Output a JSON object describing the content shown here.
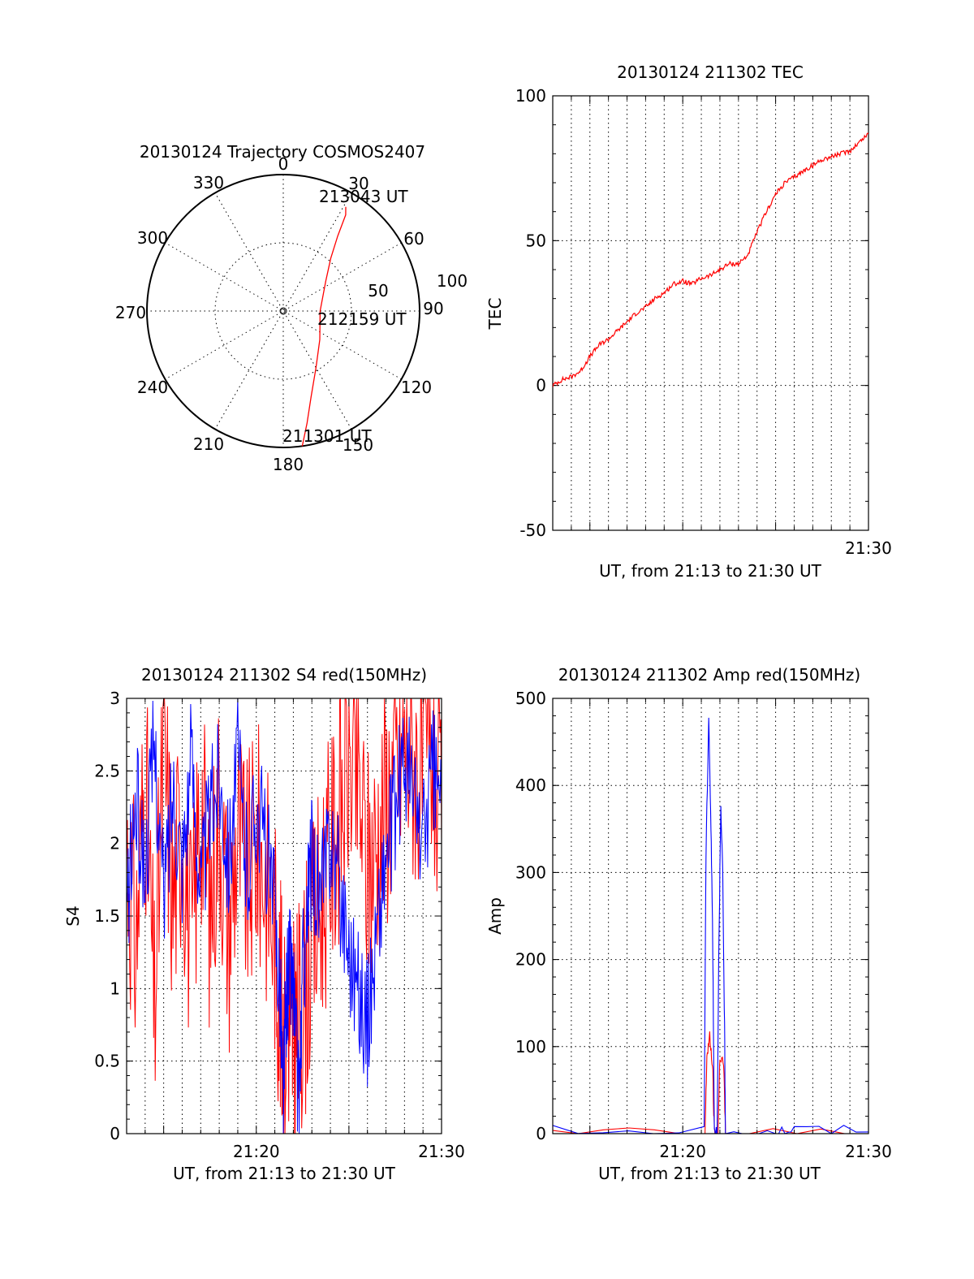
{
  "chart_data": [
    {
      "id": "trajectory",
      "type": "polar",
      "title": "20130124 Trajectory COSMOS2407",
      "radial_max": 100,
      "radial_labels": [
        "50",
        "100"
      ],
      "angle_labels": [
        "0",
        "30",
        "60",
        "90",
        "120",
        "150",
        "180",
        "210",
        "240",
        "270",
        "300",
        "330"
      ],
      "annotations": [
        "213043 UT",
        "212159 UT",
        "211301 UT"
      ],
      "series": [
        {
          "color": "#ff0000",
          "points": [
            {
              "theta": 172,
              "r": 100
            },
            {
              "theta": 168,
              "r": 84
            },
            {
              "theta": 162,
              "r": 66
            },
            {
              "theta": 150,
              "r": 48
            },
            {
              "theta": 128,
              "r": 34
            },
            {
              "theta": 90,
              "r": 27
            },
            {
              "theta": 55,
              "r": 38
            },
            {
              "theta": 42,
              "r": 52
            },
            {
              "theta": 36,
              "r": 68
            },
            {
              "theta": 33,
              "r": 84
            },
            {
              "theta": 31,
              "r": 89
            }
          ]
        }
      ]
    },
    {
      "id": "tec",
      "type": "line",
      "title": "20130124 211302 TEC",
      "xlabel": "UT, from 21:13 to 21:30 UT",
      "ylabel": "TEC",
      "xlim": [
        13,
        30
      ],
      "ylim": [
        -50,
        100
      ],
      "yticks": [
        "-50",
        "0",
        "50",
        "100"
      ],
      "xticks": [
        {
          "value": 30,
          "label": "21:30"
        }
      ],
      "grid": true,
      "series": [
        {
          "color": "#ff0000",
          "x": [
            13.0,
            13.5,
            14.0,
            14.5,
            15.0,
            15.5,
            16.0,
            16.5,
            17.0,
            17.5,
            18.0,
            18.5,
            19.0,
            19.5,
            20.0,
            20.5,
            21.0,
            21.5,
            22.0,
            22.5,
            23.0,
            23.5,
            24.0,
            24.5,
            25.0,
            25.5,
            26.0,
            26.5,
            27.0,
            27.5,
            28.0,
            28.5,
            29.0,
            29.5,
            30.0
          ],
          "y": [
            0,
            2,
            3,
            5,
            10,
            14,
            16,
            19,
            22,
            25,
            27,
            30,
            32,
            35,
            36,
            35,
            37,
            38,
            40,
            42,
            42,
            45,
            53,
            60,
            66,
            70,
            72,
            74,
            76,
            78,
            79,
            80,
            81,
            84,
            87
          ]
        }
      ]
    },
    {
      "id": "s4",
      "type": "line",
      "title": "20130124 211302 S4 red(150MHz)",
      "xlabel": "UT, from 21:13 to 21:30 UT",
      "ylabel": "S4",
      "xlim": [
        13,
        30
      ],
      "ylim": [
        0,
        3
      ],
      "yticks": [
        "0",
        "0.5",
        "1",
        "1.5",
        "2",
        "2.5",
        "3"
      ],
      "xticks": [
        {
          "value": 20,
          "label": "21:20"
        },
        {
          "value": 30,
          "label": "21:30"
        }
      ],
      "grid": true,
      "series": [
        {
          "color": "#ff0000",
          "x": [
            13.0,
            13.5,
            14.0,
            14.5,
            15.0,
            15.5,
            16.0,
            16.5,
            17.0,
            17.5,
            18.0,
            18.5,
            19.0,
            19.5,
            20.0,
            20.5,
            21.0,
            21.3,
            21.5,
            21.8,
            22.0,
            22.2,
            22.5,
            23.0,
            23.5,
            24.0,
            24.5,
            25.0,
            25.5,
            26.0,
            26.5,
            27.0,
            27.5,
            28.0,
            28.5,
            29.0,
            29.5,
            30.0
          ],
          "y": [
            2.0,
            1.3,
            2.5,
            0.8,
            2.7,
            1.6,
            2.2,
            1.2,
            2.4,
            1.5,
            2.3,
            1.4,
            2.1,
            1.7,
            2.0,
            1.8,
            1.4,
            0.9,
            0.6,
            0.9,
            0.6,
            0.7,
            0.9,
            1.3,
            1.6,
            1.9,
            2.2,
            2.6,
            2.4,
            1.8,
            2.0,
            2.3,
            2.5,
            2.7,
            2.6,
            2.4,
            2.7,
            2.0
          ]
        },
        {
          "color": "#0000ff",
          "x": [
            13.0,
            13.5,
            14.0,
            14.5,
            15.0,
            15.5,
            16.0,
            16.5,
            17.0,
            17.5,
            18.0,
            18.5,
            19.0,
            19.5,
            20.0,
            20.5,
            21.0,
            21.3,
            21.45,
            21.6,
            21.8,
            22.0,
            22.3,
            22.5,
            22.8,
            23.0,
            23.5,
            24.0,
            24.5,
            25.0,
            25.5,
            26.0,
            26.5,
            27.0,
            27.5,
            28.0,
            28.5,
            29.0,
            29.5,
            30.0
          ],
          "y": [
            1.5,
            2.3,
            1.8,
            2.7,
            1.6,
            2.4,
            1.9,
            2.6,
            1.7,
            2.2,
            2.5,
            1.9,
            2.6,
            1.8,
            2.3,
            2.0,
            1.5,
            1.0,
            0.15,
            0.9,
            1.2,
            1.0,
            0.15,
            1.1,
            1.6,
            1.9,
            1.6,
            2.1,
            1.7,
            1.3,
            1.0,
            0.75,
            1.4,
            1.9,
            2.2,
            2.6,
            2.3,
            2.0,
            2.5,
            2.3
          ]
        }
      ]
    },
    {
      "id": "amp",
      "type": "line",
      "title": "20130124 211302 Amp red(150MHz)",
      "xlabel": "UT, from 21:13 to 21:30 UT",
      "ylabel": "Amp",
      "xlim": [
        13,
        30
      ],
      "ylim": [
        0,
        500
      ],
      "yticks": [
        "0",
        "100",
        "200",
        "300",
        "400",
        "500"
      ],
      "xticks": [
        {
          "value": 20,
          "label": "21:20"
        },
        {
          "value": 30,
          "label": "21:30"
        }
      ],
      "grid": true,
      "series": [
        {
          "color": "#ff0000",
          "x": [
            13.0,
            21.2,
            21.3,
            21.45,
            21.6,
            21.7,
            21.9,
            22.0,
            22.2,
            22.3,
            30.0
          ],
          "y": [
            0,
            0,
            90,
            110,
            80,
            0,
            0,
            90,
            80,
            0,
            0
          ]
        },
        {
          "color": "#0000ff",
          "x": [
            13.0,
            21.15,
            21.25,
            21.4,
            21.5,
            21.6,
            21.7,
            21.85,
            21.95,
            22.05,
            22.15,
            22.25,
            22.3,
            25.0,
            26.0,
            30.0
          ],
          "y": [
            2,
            2,
            320,
            480,
            370,
            250,
            3,
            3,
            230,
            370,
            300,
            120,
            3,
            3,
            4,
            2
          ]
        }
      ]
    }
  ]
}
